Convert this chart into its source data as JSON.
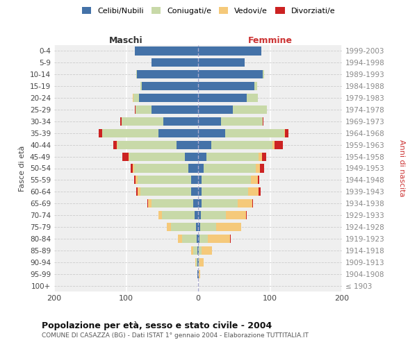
{
  "age_groups": [
    "100+",
    "95-99",
    "90-94",
    "85-89",
    "80-84",
    "75-79",
    "70-74",
    "65-69",
    "60-64",
    "55-59",
    "50-54",
    "45-49",
    "40-44",
    "35-39",
    "30-34",
    "25-29",
    "20-24",
    "15-19",
    "10-14",
    "5-9",
    "0-4"
  ],
  "birth_years": [
    "≤ 1903",
    "1904-1908",
    "1909-1913",
    "1914-1918",
    "1919-1923",
    "1924-1928",
    "1929-1933",
    "1934-1938",
    "1939-1943",
    "1944-1948",
    "1949-1953",
    "1954-1958",
    "1959-1963",
    "1964-1968",
    "1969-1973",
    "1974-1978",
    "1979-1983",
    "1984-1988",
    "1989-1993",
    "1994-1998",
    "1999-2003"
  ],
  "males": {
    "celibi": [
      0,
      1,
      1,
      1,
      2,
      3,
      5,
      7,
      10,
      10,
      14,
      18,
      30,
      55,
      48,
      65,
      82,
      78,
      85,
      65,
      88
    ],
    "coniugati": [
      0,
      0,
      2,
      6,
      20,
      35,
      45,
      58,
      70,
      74,
      75,
      78,
      82,
      78,
      58,
      22,
      8,
      2,
      1,
      0,
      0
    ],
    "vedovi": [
      0,
      0,
      1,
      3,
      6,
      5,
      5,
      5,
      4,
      3,
      2,
      1,
      1,
      0,
      0,
      0,
      1,
      0,
      0,
      0,
      0
    ],
    "divorziati": [
      0,
      0,
      0,
      0,
      0,
      0,
      0,
      1,
      2,
      2,
      3,
      8,
      5,
      5,
      2,
      1,
      0,
      0,
      0,
      0,
      0
    ]
  },
  "females": {
    "nubili": [
      0,
      1,
      1,
      1,
      2,
      3,
      4,
      5,
      5,
      5,
      8,
      12,
      18,
      38,
      32,
      48,
      68,
      78,
      90,
      65,
      88
    ],
    "coniugate": [
      0,
      0,
      1,
      4,
      12,
      22,
      35,
      50,
      65,
      68,
      72,
      72,
      85,
      82,
      58,
      48,
      15,
      4,
      2,
      0,
      0
    ],
    "vedove": [
      0,
      2,
      6,
      14,
      30,
      35,
      28,
      20,
      14,
      10,
      6,
      5,
      3,
      1,
      0,
      0,
      0,
      0,
      0,
      0,
      0
    ],
    "divorziate": [
      0,
      0,
      0,
      0,
      1,
      0,
      1,
      1,
      3,
      2,
      6,
      6,
      12,
      5,
      1,
      0,
      0,
      0,
      0,
      0,
      0
    ]
  },
  "colors": {
    "celibi": "#4472a8",
    "coniugati": "#c8d9a8",
    "vedovi": "#f5c97a",
    "divorziati": "#cc2222"
  },
  "xlim": 200,
  "title": "Popolazione per età, sesso e stato civile - 2004",
  "subtitle": "COMUNE DI CASAZZA (BG) - Dati ISTAT 1° gennaio 2004 - Elaborazione TUTTITALIA.IT",
  "label_maschi": "Maschi",
  "label_femmine": "Femmine",
  "ylabel_left": "Fasce di età",
  "ylabel_right": "Anni di nascita",
  "legend_labels": [
    "Celibi/Nubili",
    "Coniugati/e",
    "Vedovi/e",
    "Divorziati/e"
  ],
  "bg_color": "#ffffff",
  "plot_bg_color": "#efefef"
}
